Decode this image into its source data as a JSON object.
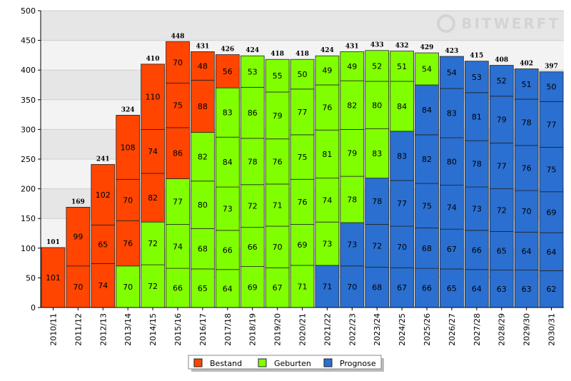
{
  "chart_data": {
    "type": "bar",
    "stacked": true,
    "watermark": "BITWERFT",
    "categories": [
      "2010/11",
      "2011/12",
      "2012/13",
      "2013/14",
      "2014/15",
      "2015/16",
      "2016/17",
      "2017/18",
      "2018/19",
      "2019/20",
      "2020/21",
      "2021/22",
      "2022/23",
      "2023/24",
      "2024/25",
      "2025/26",
      "2026/27",
      "2027/28",
      "2028/29",
      "2029/30",
      "2030/31"
    ],
    "totals": [
      101,
      169,
      241,
      324,
      410,
      448,
      431,
      426,
      424,
      418,
      418,
      424,
      431,
      433,
      432,
      429,
      423,
      415,
      408,
      402,
      397
    ],
    "series": [
      {
        "name": "Bestand",
        "color": "#ff4500",
        "values": [
          [
            101
          ],
          [
            70,
            99
          ],
          [
            74,
            65,
            102
          ],
          [
            76,
            70,
            108
          ],
          [
            82,
            74,
            110
          ],
          [
            86,
            75,
            70
          ],
          [
            88,
            48
          ],
          [
            56
          ],
          [],
          [],
          [],
          [],
          [],
          [],
          [],
          [],
          [],
          [],
          [],
          [],
          []
        ]
      },
      {
        "name": "Geburten",
        "color": "#80ff00",
        "values": [
          [],
          [],
          [],
          [
            70
          ],
          [
            72,
            72
          ],
          [
            66,
            74,
            77
          ],
          [
            65,
            68,
            80,
            82
          ],
          [
            64,
            66,
            73,
            84,
            83
          ],
          [
            69,
            66,
            72,
            78,
            86,
            53
          ],
          [
            67,
            70,
            71,
            76,
            79,
            55
          ],
          [
            71,
            69,
            76,
            75,
            77,
            50
          ],
          [
            73,
            74,
            81,
            76,
            49
          ],
          [
            78,
            79,
            82,
            49
          ],
          [
            83,
            80,
            52
          ],
          [
            84,
            51
          ],
          [
            54
          ],
          [],
          [],
          [],
          [],
          []
        ]
      },
      {
        "name": "Prognose",
        "color": "#2b6fd1",
        "values": [
          [],
          [],
          [],
          [],
          [],
          [],
          [],
          [],
          [],
          [],
          [],
          [
            71
          ],
          [
            70,
            73
          ],
          [
            68,
            72,
            78
          ],
          [
            67,
            70,
            77,
            83
          ],
          [
            66,
            68,
            75,
            82,
            84
          ],
          [
            65,
            67,
            74,
            80,
            83,
            54
          ],
          [
            64,
            66,
            73,
            78,
            81,
            53
          ],
          [
            63,
            65,
            72,
            77,
            79,
            52
          ],
          [
            63,
            64,
            70,
            76,
            78,
            51
          ],
          [
            62,
            64,
            69,
            75,
            77,
            50
          ]
        ]
      }
    ],
    "ylim": [
      0,
      500
    ],
    "yticks": [
      0,
      50,
      100,
      150,
      200,
      250,
      300,
      350,
      400,
      450,
      500
    ],
    "grid": true
  }
}
